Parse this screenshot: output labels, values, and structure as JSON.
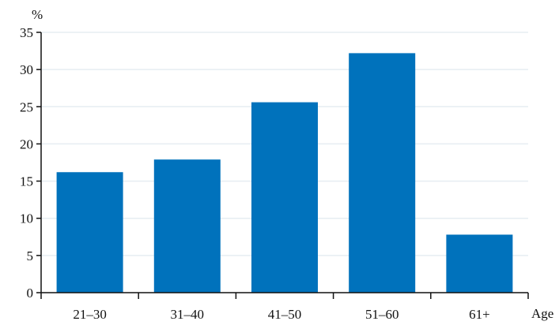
{
  "chart_data": {
    "type": "bar",
    "title": "",
    "xlabel": "Age",
    "ylabel": "%",
    "categories": [
      "21–30",
      "31–40",
      "41–50",
      "51–60",
      "61+"
    ],
    "values": [
      16.2,
      17.9,
      25.6,
      32.2,
      7.8
    ],
    "ylim": [
      0,
      35
    ],
    "yticks": [
      0,
      5,
      10,
      15,
      20,
      25,
      30,
      35
    ],
    "ytick_labels": [
      "0",
      "5",
      "10",
      "15",
      "20",
      "25",
      "30",
      "35"
    ],
    "grid": true,
    "colors": {
      "bar": "#0072bc",
      "grid": "#e6edf2",
      "axis": "#111111"
    }
  }
}
